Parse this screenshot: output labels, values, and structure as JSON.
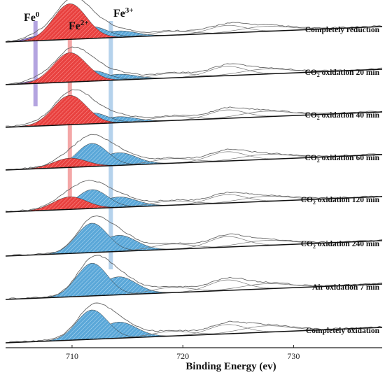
{
  "chart_data": {
    "type": "line",
    "xlabel": "Binding Energy (ev)",
    "x_ticks": [
      710,
      720,
      730
    ],
    "xlim": [
      704,
      738
    ],
    "species_labels": [
      {
        "text": "Fe",
        "sup": "0",
        "energy": 706.7,
        "color": "#9b86d6"
      },
      {
        "text": "Fe",
        "sup": "2+",
        "energy": 709.8,
        "color": "#f08a8a"
      },
      {
        "text": "Fe",
        "sup": "3+",
        "energy": 713.5,
        "color": "#9cc3e6"
      }
    ],
    "colors": {
      "fe0": "#8e6fd0",
      "fe2": "#e8413f",
      "fe3": "#5aa7d8",
      "spectrum": "#555555",
      "background": "#111111"
    },
    "series": [
      {
        "name": "Completely reduction",
        "fe0": 0.1,
        "fe2": 0.85,
        "fe3": 0.28,
        "sat1": 0.18,
        "sat2": 0.12
      },
      {
        "name": "CO2 oxidation 20 min",
        "fe0": 0.07,
        "fe2": 0.7,
        "fe3": 0.25,
        "sat1": 0.22,
        "sat2": 0.12
      },
      {
        "name": "CO2 oxidation 40 min",
        "fe0": 0.04,
        "fe2": 0.7,
        "fe3": 0.26,
        "sat1": 0.2,
        "sat2": 0.13
      },
      {
        "name": "CO2 oxidation 60 min",
        "fe0": 0.0,
        "fe2": 0.22,
        "fe3": 0.55,
        "sat1": 0.22,
        "sat2": 0.12
      },
      {
        "name": "CO2 oxidation 120 min",
        "fe0": 0.0,
        "fe2": 0.3,
        "fe3": 0.45,
        "sat1": 0.2,
        "sat2": 0.12
      },
      {
        "name": "CO2 oxidation 240 min",
        "fe0": 0.0,
        "fe2": 0.0,
        "fe3": 0.7,
        "sat1": 0.25,
        "sat2": 0.12
      },
      {
        "name": "Air oxidation 7 min",
        "fe0": 0.0,
        "fe2": 0.0,
        "fe3": 0.78,
        "sat1": 0.25,
        "sat2": 0.12
      },
      {
        "name": "Completely oxidation",
        "fe0": 0.0,
        "fe2": 0.0,
        "fe3": 0.7,
        "sat1": 0.22,
        "sat2": 0.15
      }
    ]
  }
}
